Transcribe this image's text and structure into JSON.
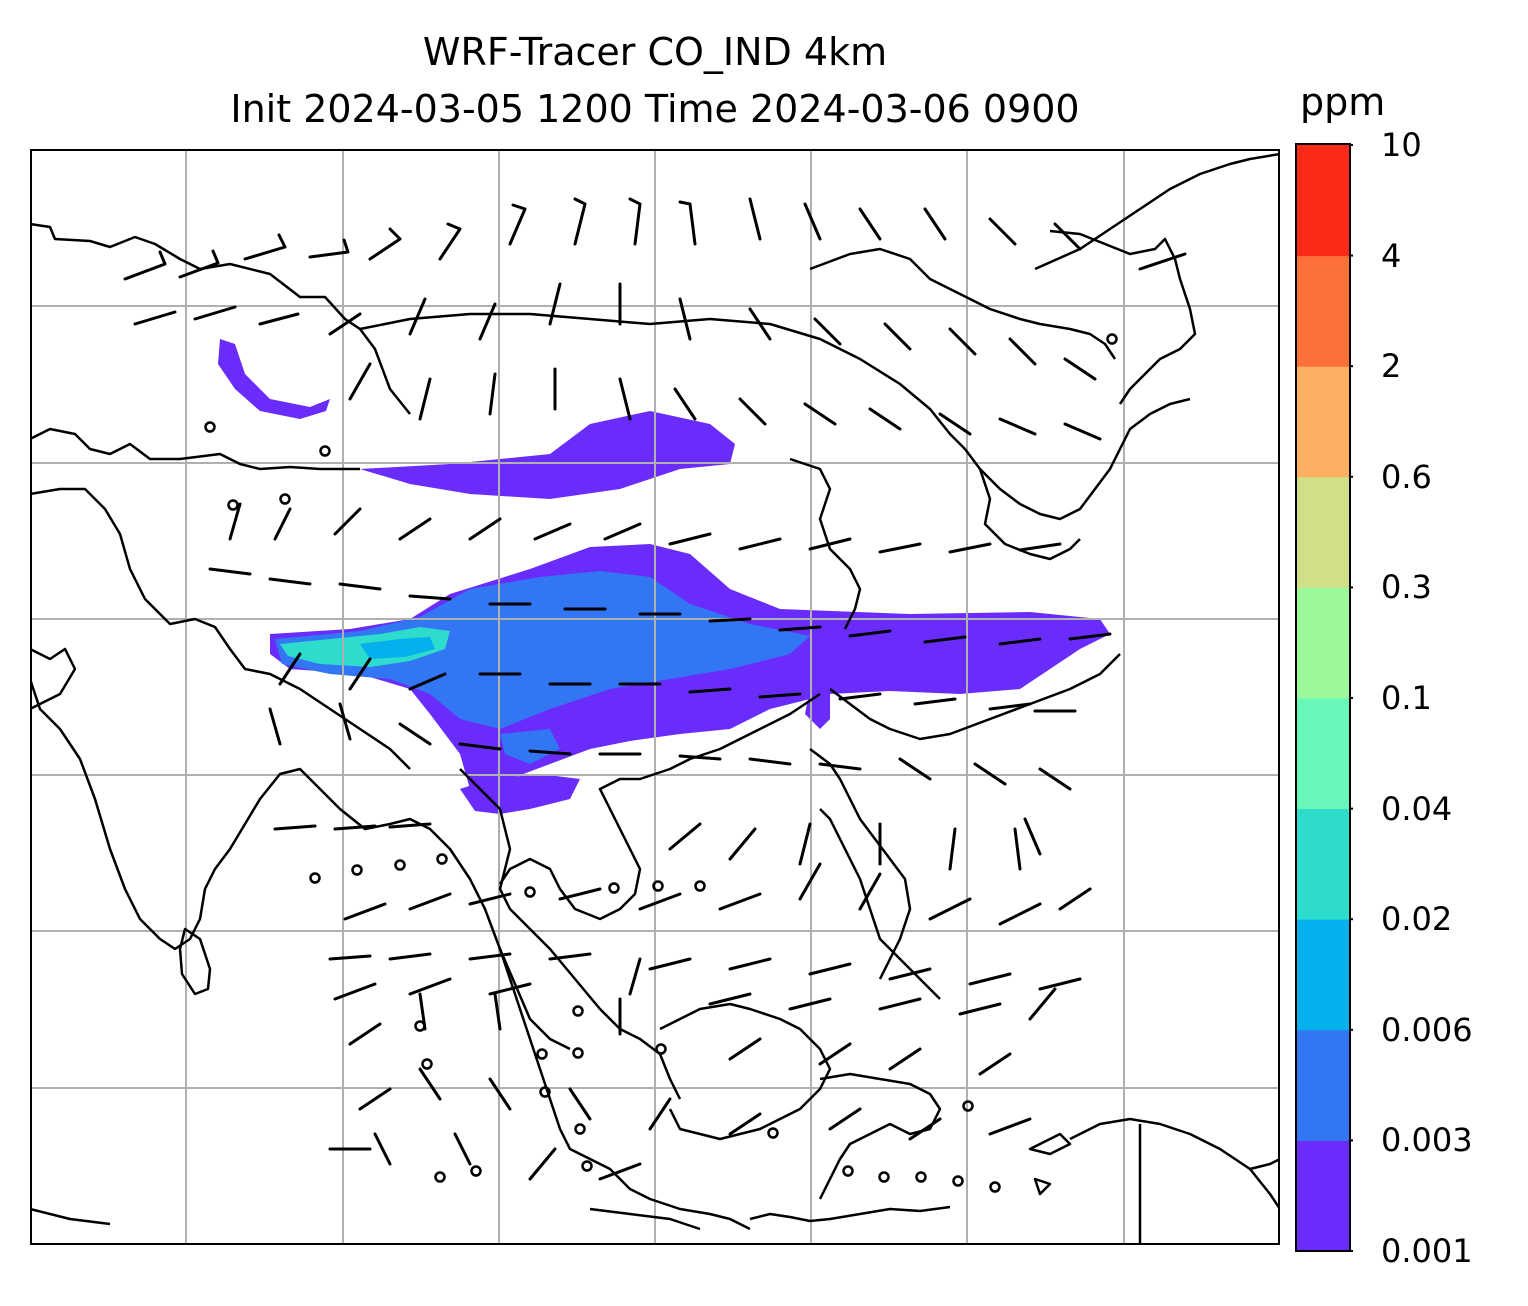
{
  "title": {
    "line1": "WRF-Tracer CO_IND 4km",
    "line2": "Init 2024-03-05 1200 Time 2024-03-06 0900"
  },
  "colorbar": {
    "units": "ppm",
    "levels": [
      "0.001",
      "0.003",
      "0.006",
      "0.02",
      "0.04",
      "0.1",
      "0.3",
      "0.6",
      "2",
      "4",
      "10"
    ],
    "colors": [
      "#6a2cfb",
      "#3276f3",
      "#04b1ec",
      "#2ddccd",
      "#69f6b9",
      "#9bf99b",
      "#cfe086",
      "#fbb063",
      "#fd7039",
      "#fc2a17"
    ]
  },
  "map": {
    "background": "#ffffff",
    "coastline_color": "#000000",
    "gridline_color": "#b0b0b0",
    "wind_barb_color": "#000000",
    "plume_colors": {
      "outer": "#6a2cfb",
      "mid": "#3276f3",
      "inner": "#2ddccd",
      "core": "#04b1ec"
    }
  }
}
